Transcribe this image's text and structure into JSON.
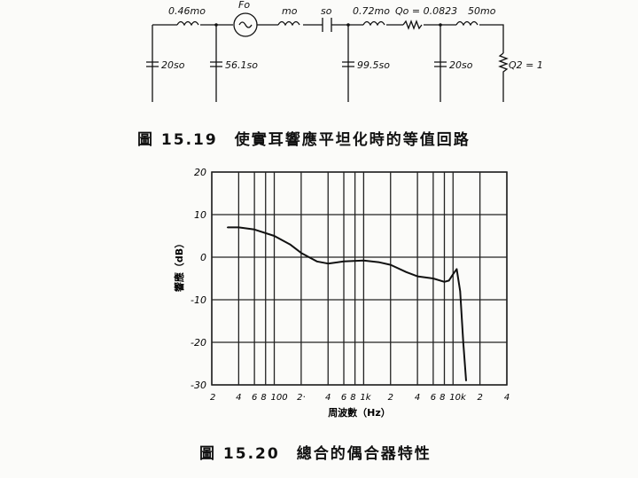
{
  "circuit": {
    "labels": {
      "l1": "0.46mo",
      "src": "Fo",
      "l2": "mo",
      "c_series": "so",
      "l3": "0.72mo",
      "r1": "Qo = 0.0823",
      "l4": "50mo",
      "c1": "20so",
      "c2": "56.1so",
      "c3": "99.5so",
      "c4": "20so",
      "r2": "Q2 = 1"
    }
  },
  "caption_1": "圖 15.19　使實耳響應平坦化時的等值回路",
  "caption_2": "圖 15.20　總合的偶合器特性",
  "chart_data": {
    "type": "line",
    "xlabel": "周波數（Hz）",
    "ylabel": "響應（dB）",
    "xscale": "log",
    "xlim": [
      20,
      40000
    ],
    "ylim": [
      -30,
      20
    ],
    "grid": true,
    "yticks": [
      20,
      10,
      0,
      -10,
      -20,
      -30
    ],
    "ytick_labels": [
      "20",
      "10",
      "0",
      "-10",
      "-20",
      "-30"
    ],
    "xticks": [
      20,
      40,
      60,
      80,
      100,
      200,
      400,
      600,
      800,
      1000,
      2000,
      4000,
      6000,
      8000,
      10000,
      20000,
      40000
    ],
    "xtick_labels": [
      "2",
      "4",
      "6",
      "8",
      "100",
      "2·",
      "4",
      "6",
      "8",
      "1k",
      "2",
      "4",
      "6",
      "8",
      "10k",
      "2",
      "4"
    ],
    "series": [
      {
        "x": [
          30,
          40,
          60,
          100,
          150,
          200,
          300,
          400,
          600,
          1000,
          1500,
          2000,
          3000,
          4000,
          6000,
          8000,
          9000,
          10000,
          11000,
          12000,
          13000,
          14000
        ],
        "y": [
          7,
          7,
          6.5,
          5,
          3,
          1,
          -1,
          -1.5,
          -1,
          -0.8,
          -1.2,
          -1.8,
          -3.5,
          -4.5,
          -5,
          -5.8,
          -5.5,
          -4,
          -2.8,
          -8,
          -20,
          -29
        ]
      }
    ]
  }
}
